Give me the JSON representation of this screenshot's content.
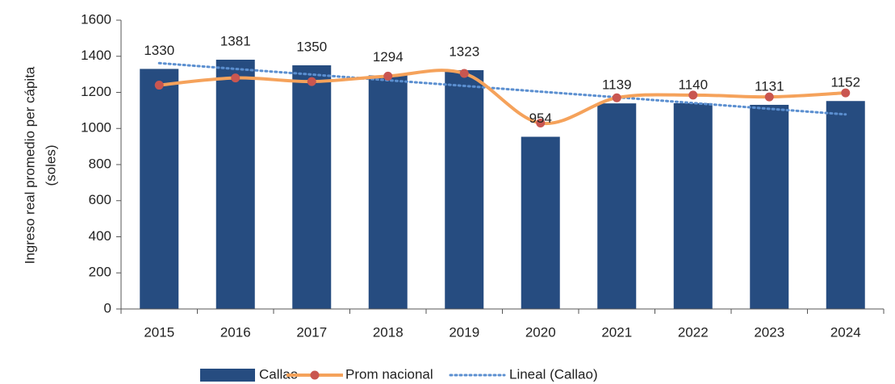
{
  "chart_data": {
    "type": "bar",
    "y_label": [
      "Ingreso real promedio per cápita",
      "(soles)"
    ],
    "categories": [
      "2015",
      "2016",
      "2017",
      "2018",
      "2019",
      "2020",
      "2021",
      "2022",
      "2023",
      "2024"
    ],
    "series": [
      {
        "name": "Callao",
        "type": "bar",
        "color": "#264c80",
        "values": [
          1330,
          1381,
          1350,
          1294,
          1323,
          954,
          1139,
          1140,
          1131,
          1152
        ]
      },
      {
        "name": "Prom nacional",
        "type": "line",
        "color": "#f5a25b",
        "marker_color": "#c95650",
        "values": [
          1240,
          1280,
          1260,
          1290,
          1305,
          1030,
          1170,
          1185,
          1175,
          1197
        ]
      },
      {
        "name": "Lineal (Callao)",
        "type": "trend",
        "color": "#5b8fd0",
        "values": [
          1362,
          1330,
          1299,
          1267,
          1236,
          1204,
          1173,
          1141,
          1109,
          1078
        ]
      }
    ],
    "ylim": [
      0,
      1600
    ],
    "yticks": [
      0,
      200,
      400,
      600,
      800,
      1000,
      1200,
      1400,
      1600
    ]
  }
}
